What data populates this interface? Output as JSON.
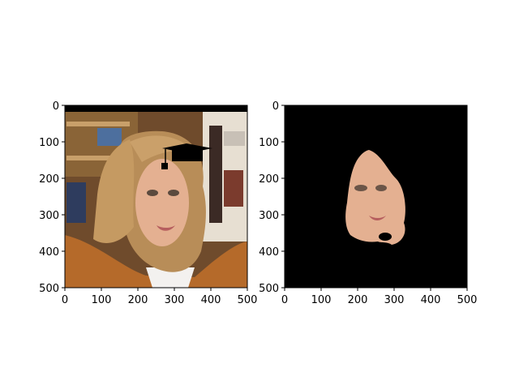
{
  "colors": {
    "background": "#ffffff",
    "axis": "#000000",
    "mask_background": "#000000",
    "skin": "#e7b89b",
    "hair": "#b88d58",
    "jacket": "#b56a2a",
    "wall": "#6c4a2a"
  },
  "chart_data": [
    {
      "type": "image",
      "name": "left-panel",
      "title": "",
      "xlabel": "",
      "ylabel": "",
      "xlim": [
        0,
        500
      ],
      "ylim": [
        500,
        0
      ],
      "x_ticks": [
        "0",
        "100",
        "200",
        "300",
        "400",
        "500"
      ],
      "y_ticks": [
        "0",
        "100",
        "200",
        "300",
        "400",
        "500"
      ],
      "y_axis_inverted": true,
      "grid": false,
      "content": "photo"
    },
    {
      "type": "image",
      "name": "right-panel",
      "title": "",
      "xlabel": "",
      "ylabel": "",
      "xlim": [
        0,
        500
      ],
      "ylim": [
        500,
        0
      ],
      "x_ticks": [
        "0",
        "100",
        "200",
        "300",
        "400",
        "500"
      ],
      "y_ticks": [
        "0",
        "100",
        "200",
        "300",
        "400",
        "500"
      ],
      "y_axis_inverted": true,
      "grid": false,
      "content": "masked face on black"
    }
  ]
}
